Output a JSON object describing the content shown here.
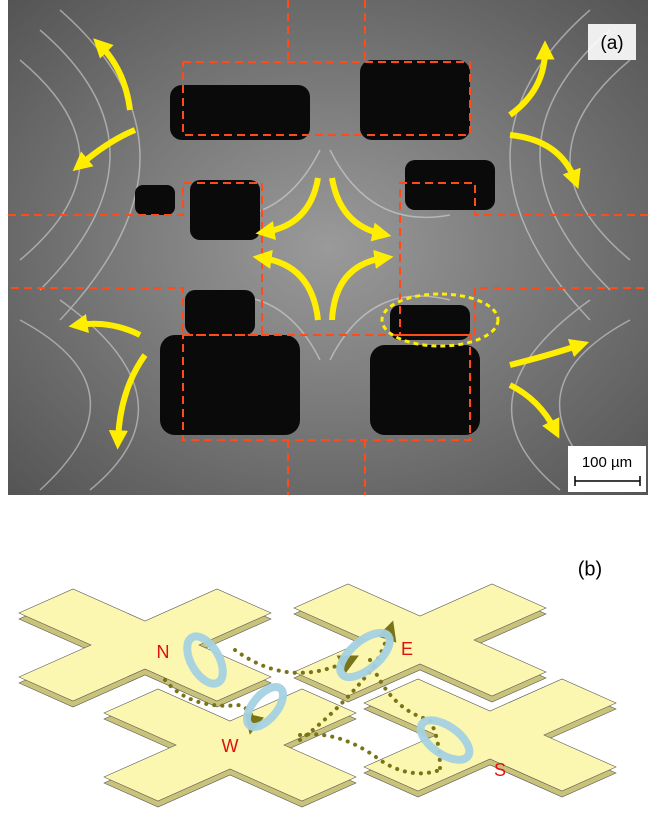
{
  "panel_a": {
    "label": "(a)",
    "scale_bar": "100 µm"
  },
  "panel_b": {
    "label": "(b)",
    "electrodes": [
      "N",
      "E",
      "W",
      "S"
    ]
  }
}
